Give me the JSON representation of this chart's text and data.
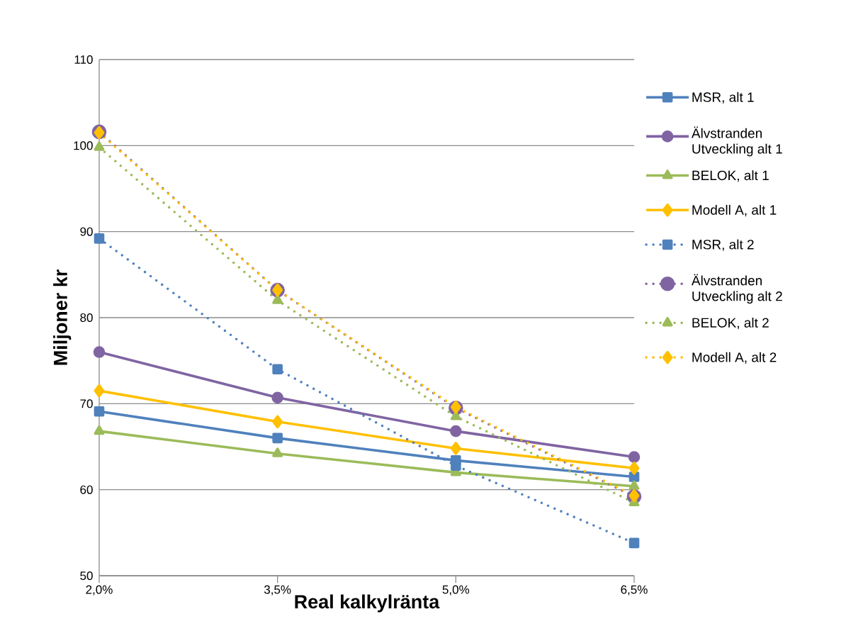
{
  "chart_data": {
    "type": "line",
    "xlabel": "Real kalkylränta",
    "ylabel": "Miljoner kr",
    "categories": [
      "2,0%",
      "3,5%",
      "5,0%",
      "6,5%"
    ],
    "ylim": [
      50,
      110
    ],
    "yticks": [
      50,
      60,
      70,
      80,
      90,
      100,
      110
    ],
    "grid": "y",
    "legend": "right",
    "series": [
      {
        "name": "MSR, alt 1",
        "color": "#4f81bd",
        "marker": "square",
        "line_style": "solid",
        "values": [
          69.1,
          66.0,
          63.4,
          61.5
        ]
      },
      {
        "name": "Älvstranden Utveckling alt 1",
        "color": "#8064a2",
        "marker": "circle",
        "line_style": "solid",
        "values": [
          76.0,
          70.7,
          66.8,
          63.8
        ]
      },
      {
        "name": "BELOK, alt 1",
        "color": "#9bbb59",
        "marker": "triangle",
        "line_style": "solid",
        "values": [
          66.8,
          64.2,
          62.0,
          60.4
        ]
      },
      {
        "name": "Modell A, alt 1",
        "color": "#ffc000",
        "marker": "diamond",
        "line_style": "solid",
        "values": [
          71.5,
          67.9,
          64.8,
          62.5
        ]
      },
      {
        "name": "MSR, alt 2",
        "color": "#4f81bd",
        "marker": "square",
        "line_style": "dotted",
        "values": [
          89.2,
          74.0,
          62.8,
          53.8
        ]
      },
      {
        "name": "Älvstranden Utveckling alt 2",
        "color": "#8064a2",
        "marker": "circle",
        "line_style": "dotted",
        "values": [
          101.6,
          83.2,
          69.5,
          59.2
        ]
      },
      {
        "name": "BELOK, alt 2",
        "color": "#9bbb59",
        "marker": "triangle",
        "line_style": "dotted",
        "values": [
          99.8,
          82.0,
          68.5,
          58.5
        ]
      },
      {
        "name": "Modell A, alt 2",
        "color": "#ffc000",
        "marker": "diamond",
        "line_style": "dotted",
        "values": [
          101.5,
          83.2,
          69.6,
          59.3
        ]
      }
    ]
  }
}
